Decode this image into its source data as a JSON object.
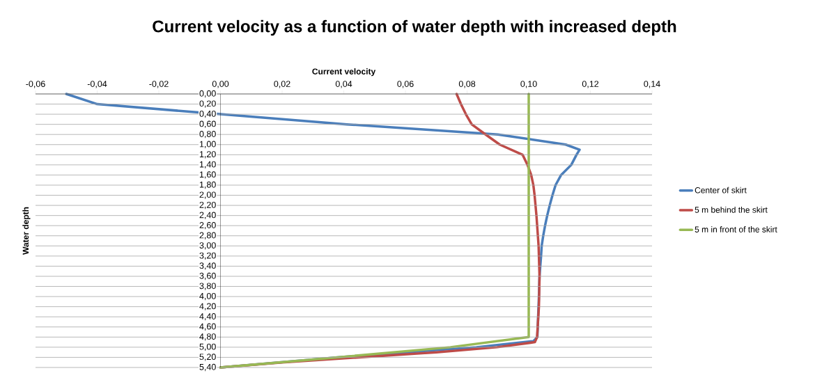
{
  "chart_data": {
    "type": "line",
    "title": "Current velocity as a function of water depth with increased depth",
    "xlabel": "Current velocity",
    "ylabel": "Water depth",
    "xlim": [
      -0.06,
      0.14
    ],
    "xticks": [
      {
        "value": -0.06,
        "label": "-0,06"
      },
      {
        "value": -0.04,
        "label": "-0,04"
      },
      {
        "value": -0.02,
        "label": "-0,02"
      },
      {
        "value": 0,
        "label": "0,00"
      },
      {
        "value": 0.02,
        "label": "0,02"
      },
      {
        "value": 0.04,
        "label": "0,04"
      },
      {
        "value": 0.06,
        "label": "0,06"
      },
      {
        "value": 0.08,
        "label": "0,08"
      },
      {
        "value": 0.1,
        "label": "0,10"
      },
      {
        "value": 0.12,
        "label": "0,12"
      },
      {
        "value": 0.14,
        "label": "0,14"
      }
    ],
    "ylim": [
      5.4,
      0
    ],
    "yticks": [
      {
        "value": 0,
        "label": "0,00"
      },
      {
        "value": 0.2,
        "label": "0,20"
      },
      {
        "value": 0.4,
        "label": "0,40"
      },
      {
        "value": 0.6,
        "label": "0,60"
      },
      {
        "value": 0.8,
        "label": "0,80"
      },
      {
        "value": 1.0,
        "label": "1,00"
      },
      {
        "value": 1.2,
        "label": "1,20"
      },
      {
        "value": 1.4,
        "label": "1,40"
      },
      {
        "value": 1.6,
        "label": "1,60"
      },
      {
        "value": 1.8,
        "label": "1,80"
      },
      {
        "value": 2.0,
        "label": "2,00"
      },
      {
        "value": 2.2,
        "label": "2,20"
      },
      {
        "value": 2.4,
        "label": "2,40"
      },
      {
        "value": 2.6,
        "label": "2,60"
      },
      {
        "value": 2.8,
        "label": "2,80"
      },
      {
        "value": 3.0,
        "label": "3,00"
      },
      {
        "value": 3.2,
        "label": "3,20"
      },
      {
        "value": 3.4,
        "label": "3,40"
      },
      {
        "value": 3.6,
        "label": "3,60"
      },
      {
        "value": 3.8,
        "label": "3,80"
      },
      {
        "value": 4.0,
        "label": "4,00"
      },
      {
        "value": 4.2,
        "label": "4,20"
      },
      {
        "value": 4.4,
        "label": "4,40"
      },
      {
        "value": 4.6,
        "label": "4,60"
      },
      {
        "value": 4.8,
        "label": "4,80"
      },
      {
        "value": 5.0,
        "label": "5,00"
      },
      {
        "value": 5.2,
        "label": "5,20"
      },
      {
        "value": 5.4,
        "label": "5,40"
      }
    ],
    "grid": "y",
    "legend": "right",
    "marker": "none",
    "line_style": "solid",
    "series": [
      {
        "name": "Center of skirt",
        "color": "#4a7ebb",
        "x": [
          -0.05,
          -0.04,
          0.0,
          0.041,
          0.09,
          0.112,
          0.1165,
          0.1155,
          0.1138,
          0.1105,
          0.1087,
          0.1077,
          0.1068,
          0.106,
          0.1053,
          0.1047,
          0.1042,
          0.104,
          0.1035,
          0.1033,
          0.1028,
          0.1015,
          0.083,
          0.038,
          0.0
        ],
        "values": [
          0,
          0.2,
          0.4,
          0.6,
          0.8,
          1.0,
          1.1,
          1.2,
          1.4,
          1.6,
          1.8,
          2.0,
          2.2,
          2.4,
          2.6,
          2.8,
          3.0,
          3.2,
          3.6,
          4.0,
          4.8,
          4.88,
          5.0,
          5.2,
          5.4
        ]
      },
      {
        "name": "5 m behind the skirt",
        "color": "#be4b48",
        "x": [
          0.0766,
          0.078,
          0.0796,
          0.0815,
          0.086,
          0.0906,
          0.098,
          0.0996,
          0.1008,
          0.1015,
          0.1019,
          0.1025,
          0.1032,
          0.1035,
          0.1033,
          0.1027,
          0.102,
          0.0897,
          0.07,
          0.045,
          0.02,
          0.0
        ],
        "values": [
          0,
          0.2,
          0.4,
          0.6,
          0.8,
          1.0,
          1.2,
          1.4,
          1.6,
          1.8,
          2.0,
          2.4,
          3.0,
          3.6,
          4.2,
          4.8,
          4.9,
          5.0,
          5.1,
          5.2,
          5.3,
          5.4
        ]
      },
      {
        "name": "5 m in front of the skirt",
        "color": "#98b954",
        "x": [
          0.1,
          0.1,
          0.0746,
          0.038,
          0.0
        ],
        "values": [
          0,
          4.8,
          5.0,
          5.2,
          5.4
        ]
      }
    ]
  }
}
